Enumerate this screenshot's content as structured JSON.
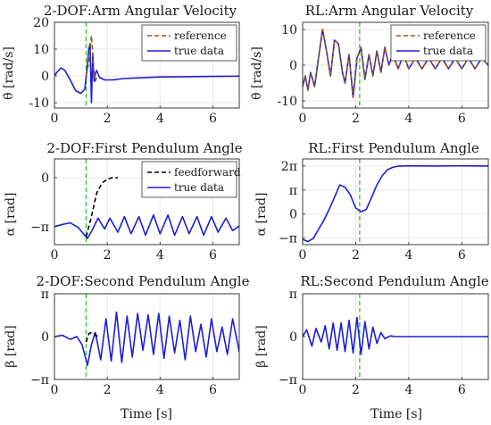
{
  "colors": {
    "reference": "#8b5a2b",
    "true_data": "#1f1fd0",
    "feedforward": "#000000",
    "marker": "#33cc33",
    "grid": "#e6e6e6",
    "axis": "#262626"
  },
  "figure": {
    "xlabel": "Time [s]"
  },
  "chart_data": [
    {
      "id": "p1",
      "type": "line",
      "title": "2-DOF:Arm Angular Velocity",
      "ylabel": "θ̇ [rad/s]",
      "xlim": [
        0,
        7
      ],
      "ylim": [
        -12,
        20
      ],
      "xticks": [
        0,
        2,
        4,
        6
      ],
      "xtick_labels": [
        "0",
        "2",
        "4",
        "6"
      ],
      "yticks": [
        -10,
        0,
        10,
        20
      ],
      "ytick_labels": [
        "-10",
        "0",
        "10",
        "20"
      ],
      "grid": true,
      "legend": "top-right",
      "vline_x": 1.2,
      "series": [
        {
          "name": "reference",
          "style": "dashed",
          "color": "reference",
          "x": [
            1.2,
            1.3,
            1.35,
            1.4,
            1.45,
            1.5,
            1.55,
            1.6
          ],
          "y": [
            0.0,
            5.0,
            10.0,
            15.0,
            8.0,
            0.0,
            -2.0,
            -0.5
          ]
        },
        {
          "name": "true data",
          "style": "solid",
          "color": "true_data",
          "x": [
            0,
            0.1,
            0.25,
            0.4,
            0.6,
            0.8,
            1.0,
            1.15,
            1.25,
            1.3,
            1.35,
            1.4,
            1.45,
            1.5,
            1.55,
            1.6,
            1.7,
            1.9,
            2.2,
            2.6,
            3.0,
            4.0,
            5.0,
            6.0,
            7.0
          ],
          "y": [
            0,
            1.5,
            3.0,
            2.0,
            -1.5,
            -5.5,
            -6.5,
            -5.0,
            4.0,
            10.0,
            12.0,
            -10.0,
            8.0,
            -2.0,
            1.0,
            2.0,
            -0.5,
            -1.5,
            -1.5,
            -1.0,
            -0.8,
            -0.4,
            -0.3,
            -0.2,
            -0.1
          ]
        }
      ]
    },
    {
      "id": "p2",
      "type": "line",
      "title": "RL:Arm Angular Velocity",
      "ylabel": "θ̇ [rad/s]",
      "xlim": [
        0,
        7
      ],
      "ylim": [
        -12,
        12
      ],
      "xticks": [
        0,
        2,
        4,
        6
      ],
      "xtick_labels": [
        "0",
        "2",
        "4",
        "6"
      ],
      "yticks": [
        -10,
        0,
        10
      ],
      "ytick_labels": [
        "-10",
        "0",
        "10"
      ],
      "grid": true,
      "legend": "top-right",
      "vline_x": 2.15,
      "series": [
        {
          "name": "reference",
          "style": "dashed",
          "color": "reference",
          "x": [
            0,
            0.1,
            0.2,
            0.3,
            0.45,
            0.6,
            0.75,
            0.9,
            1.05,
            1.2,
            1.35,
            1.5,
            1.6,
            1.75,
            1.9,
            2.05,
            2.2,
            2.35,
            2.5,
            2.65,
            2.8,
            2.95,
            3.1,
            3.25,
            3.4,
            3.6,
            3.8,
            4.0,
            4.25,
            4.5,
            4.75,
            5.0,
            5.25,
            5.5,
            5.75,
            6.0,
            6.25,
            6.5,
            6.75,
            7.0
          ],
          "y": [
            -6,
            -3,
            -7,
            -2,
            -6,
            2,
            10,
            4,
            -3,
            7,
            6,
            -2,
            -5,
            3,
            -9,
            2,
            5,
            -4,
            3,
            -3,
            4,
            -2,
            5,
            0,
            3,
            -1,
            3,
            -1,
            2,
            -1,
            2,
            -1,
            2,
            -1,
            2,
            -1,
            2,
            -1,
            2,
            0
          ]
        },
        {
          "name": "true data",
          "style": "solid",
          "color": "true_data",
          "x": [
            0,
            0.1,
            0.2,
            0.3,
            0.45,
            0.6,
            0.75,
            0.9,
            1.05,
            1.2,
            1.35,
            1.5,
            1.6,
            1.75,
            1.9,
            2.05,
            2.2,
            2.35,
            2.5,
            2.65,
            2.8,
            2.95,
            3.1,
            3.25,
            3.4,
            3.6,
            3.8,
            4.0,
            4.25,
            4.5,
            4.75,
            5.0,
            5.25,
            5.5,
            5.75,
            6.0,
            6.25,
            6.5,
            6.75,
            7.0
          ],
          "y": [
            -6,
            -3,
            -7,
            -2,
            -6,
            2,
            10,
            4,
            -3,
            7,
            6,
            -2,
            -5,
            3,
            -9,
            2,
            5,
            -4,
            3,
            -3,
            4,
            -2,
            5,
            0,
            3,
            -1,
            3,
            -1,
            2,
            -1,
            2,
            -1,
            2,
            -1,
            2,
            -1,
            2,
            -1,
            2,
            0
          ]
        }
      ]
    },
    {
      "id": "p3",
      "type": "line",
      "title": "2-DOF:First Pendulum Angle",
      "ylabel": "α [rad]",
      "xlim": [
        0,
        7
      ],
      "ylim": [
        -4.3,
        1.2
      ],
      "xticks": [
        0,
        2,
        4,
        6
      ],
      "xtick_labels": [
        "0",
        "2",
        "4",
        "6"
      ],
      "yticks": [
        -3.1416,
        0
      ],
      "ytick_labels": [
        "−π",
        "0"
      ],
      "grid": true,
      "legend": "top-right",
      "vline_x": 1.2,
      "series": [
        {
          "name": "feedforward",
          "style": "dashed",
          "color": "feedforward",
          "x": [
            1.2,
            1.4,
            1.6,
            1.8,
            2.0,
            2.2,
            2.4
          ],
          "y": [
            -3.8,
            -2.5,
            -1.0,
            -0.35,
            -0.1,
            0.0,
            0.0
          ]
        },
        {
          "name": "true data",
          "style": "solid",
          "color": "true_data",
          "x": [
            0,
            0.3,
            0.6,
            0.9,
            1.1,
            1.25,
            1.45,
            1.65,
            1.9,
            2.1,
            2.4,
            2.65,
            2.9,
            3.2,
            3.45,
            3.75,
            4.0,
            4.3,
            4.55,
            4.85,
            5.1,
            5.4,
            5.65,
            5.95,
            6.2,
            6.5,
            6.75,
            7.0
          ],
          "y": [
            -3.14,
            -3.0,
            -2.9,
            -3.2,
            -3.6,
            -3.9,
            -3.3,
            -2.6,
            -3.3,
            -2.6,
            -3.5,
            -2.5,
            -3.6,
            -2.5,
            -3.7,
            -2.4,
            -3.6,
            -2.4,
            -3.7,
            -2.5,
            -3.6,
            -2.5,
            -3.7,
            -2.5,
            -3.5,
            -2.6,
            -3.4,
            -3.1
          ]
        }
      ]
    },
    {
      "id": "p4",
      "type": "line",
      "title": "RL:First Pendulum Angle",
      "ylabel": "α [rad]",
      "xlim": [
        0,
        7
      ],
      "ylim": [
        -4.0,
        7.2
      ],
      "xticks": [
        0,
        2,
        4,
        6
      ],
      "xtick_labels": [
        "0",
        "2",
        "4",
        "6"
      ],
      "yticks": [
        -3.1416,
        0,
        3.1416,
        6.2832
      ],
      "ytick_labels": [
        "−π",
        "0",
        "π",
        "2π"
      ],
      "grid": true,
      "vline_x": 2.15,
      "series": [
        {
          "name": "true data",
          "style": "solid",
          "color": "true_data",
          "x": [
            0,
            0.2,
            0.4,
            0.6,
            0.8,
            1.0,
            1.2,
            1.4,
            1.6,
            1.8,
            2.0,
            2.2,
            2.4,
            2.6,
            2.8,
            3.0,
            3.2,
            3.4,
            3.6,
            4.0,
            5.0,
            6.0,
            7.0
          ],
          "y": [
            -3.3,
            -3.6,
            -3.2,
            -2.0,
            -0.8,
            0.6,
            2.2,
            3.8,
            3.5,
            2.5,
            0.8,
            0.3,
            0.6,
            2.2,
            3.8,
            5.0,
            5.8,
            6.1,
            6.25,
            6.3,
            6.28,
            6.3,
            6.28
          ]
        }
      ]
    },
    {
      "id": "p5",
      "type": "line",
      "title": "2-DOF:Second Pendulum Angle",
      "ylabel": "β [rad]",
      "xlim": [
        0,
        7
      ],
      "ylim": [
        -3.1416,
        3.1416
      ],
      "xticks": [
        0,
        2,
        4,
        6
      ],
      "xtick_labels": [
        "0",
        "2",
        "4",
        "6"
      ],
      "yticks": [
        -3.1416,
        0,
        3.1416
      ],
      "ytick_labels": [
        "−π",
        "0",
        "π"
      ],
      "grid": true,
      "vline_x": 1.2,
      "series": [
        {
          "name": "feedforward",
          "style": "dashed",
          "color": "feedforward",
          "x": [
            1.2,
            1.3,
            1.4,
            1.5,
            1.6,
            1.7
          ],
          "y": [
            -0.4,
            0.2,
            0.3,
            0.2,
            0.05,
            0.0
          ]
        },
        {
          "name": "true data",
          "style": "solid",
          "color": "true_data",
          "x": [
            0,
            0.3,
            0.6,
            0.85,
            1.05,
            1.25,
            1.4,
            1.55,
            1.75,
            1.95,
            2.15,
            2.35,
            2.55,
            2.75,
            2.95,
            3.15,
            3.35,
            3.55,
            3.75,
            3.95,
            4.15,
            4.35,
            4.55,
            4.75,
            4.95,
            5.15,
            5.35,
            5.55,
            5.75,
            5.95,
            6.15,
            6.35,
            6.55,
            6.75,
            7.0
          ],
          "y": [
            0,
            0.1,
            -0.2,
            0.0,
            -0.6,
            -2.1,
            -0.6,
            0.3,
            -1.7,
            1.3,
            -1.8,
            1.8,
            -1.9,
            1.5,
            -1.5,
            1.7,
            -1.0,
            1.6,
            -1.3,
            1.7,
            -1.6,
            1.5,
            -1.2,
            1.2,
            -1.7,
            1.5,
            -1.1,
            0.9,
            -1.5,
            1.3,
            -1.1,
            0.7,
            -1.3,
            1.3,
            -1.1
          ]
        }
      ]
    },
    {
      "id": "p6",
      "type": "line",
      "title": "RL:Second Pendulum Angle",
      "ylabel": "β [rad]",
      "xlim": [
        0,
        7
      ],
      "ylim": [
        -3.1416,
        3.1416
      ],
      "xticks": [
        0,
        2,
        4,
        6
      ],
      "xtick_labels": [
        "0",
        "2",
        "4",
        "6"
      ],
      "yticks": [
        -3.1416,
        0,
        3.1416
      ],
      "ytick_labels": [
        "−π",
        "0",
        "π"
      ],
      "grid": true,
      "vline_x": 2.15,
      "series": [
        {
          "name": "true data",
          "style": "solid",
          "color": "true_data",
          "x": [
            0,
            0.15,
            0.35,
            0.5,
            0.7,
            0.85,
            1.0,
            1.15,
            1.3,
            1.45,
            1.6,
            1.75,
            1.9,
            2.05,
            2.2,
            2.35,
            2.5,
            2.65,
            2.8,
            2.95,
            3.1,
            3.3,
            3.5,
            4.0,
            5.0,
            6.0,
            7.0
          ],
          "y": [
            0,
            0.5,
            -0.7,
            0.6,
            -0.4,
            0.8,
            -0.9,
            1.0,
            -1.0,
            1.0,
            -1.1,
            1.2,
            -1.2,
            1.4,
            -1.3,
            1.1,
            -0.9,
            0.7,
            -0.5,
            0.3,
            -0.15,
            0.05,
            0.0,
            0.0,
            0.0,
            0.0,
            0.0
          ]
        }
      ]
    }
  ]
}
